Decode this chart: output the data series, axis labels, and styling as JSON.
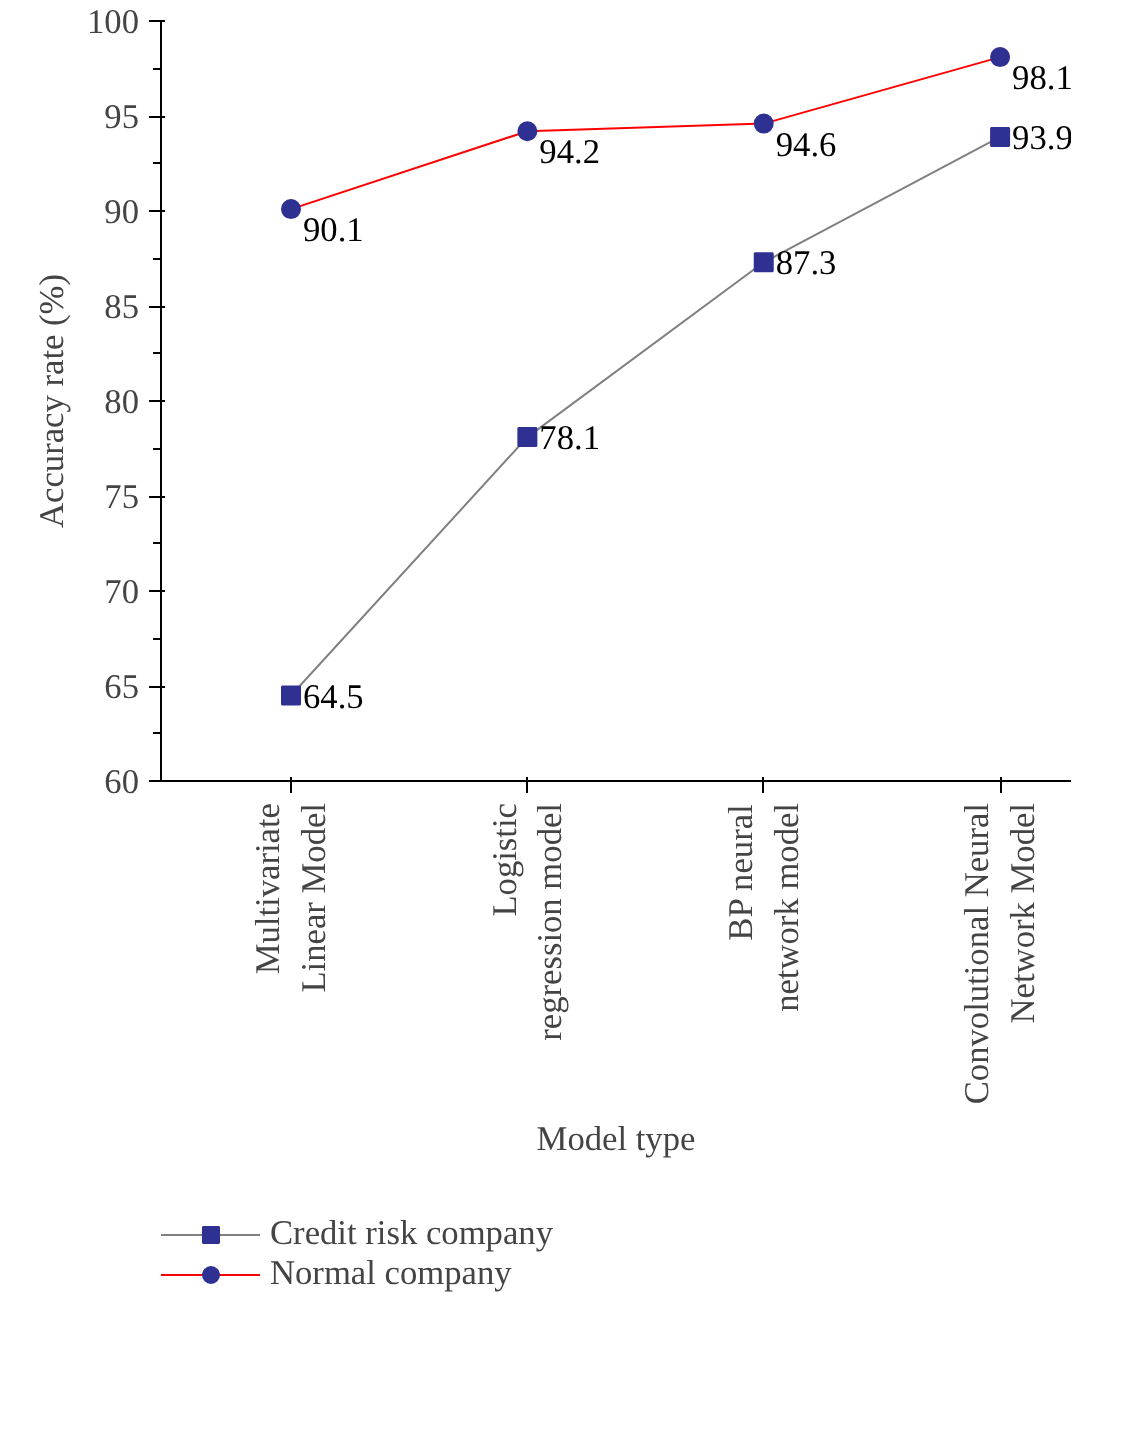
{
  "chart_data": {
    "type": "line",
    "xlabel": "Model type",
    "ylabel": "Accuracy rate (%)",
    "categories": [
      "Multivariate\nLinear Model",
      "Logistic\nregression model",
      "BP neural\nnetwork model",
      "Convolutional Neural\nNetwork Model"
    ],
    "series": [
      {
        "name": "Credit risk company",
        "color": "#808080",
        "marker": "square",
        "values": [
          64.5,
          78.1,
          87.3,
          93.9
        ]
      },
      {
        "name": "Normal company",
        "color": "#ff0000",
        "marker": "circle",
        "values": [
          90.1,
          94.2,
          94.6,
          98.1
        ]
      }
    ],
    "ylim": [
      60,
      100
    ],
    "yticks": [
      60,
      65,
      70,
      75,
      80,
      85,
      90,
      95,
      100
    ],
    "data_labels": true,
    "grid": false,
    "legend": "bottom",
    "line_style": "solid"
  }
}
